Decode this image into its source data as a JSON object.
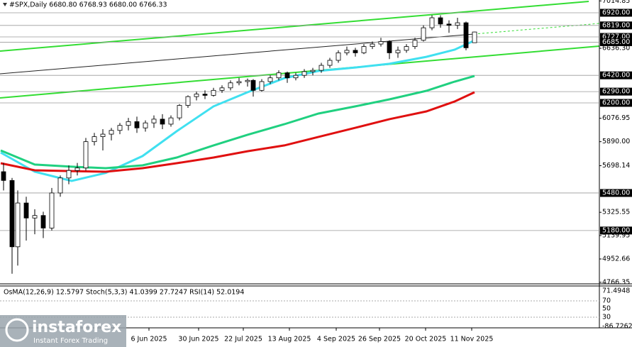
{
  "chart_data": {
    "type": "candlestick",
    "title": "#SPX,Daily  6680.80 6768.93 6680.00 6766.33",
    "x": [
      0,
      3,
      5,
      8,
      11,
      14,
      17,
      20,
      23,
      26,
      29,
      32,
      35,
      38,
      41,
      44,
      47,
      50,
      53,
      56,
      59,
      62,
      65,
      68,
      71,
      74,
      77,
      80,
      83,
      86,
      88,
      91,
      94,
      97,
      100,
      103,
      106,
      109,
      112,
      115,
      118,
      121,
      124,
      127,
      130,
      133,
      136,
      139,
      142,
      145,
      148,
      151,
      154,
      157,
      160,
      163,
      166
    ],
    "open": [
      5650,
      5580,
      5050,
      5400,
      5280,
      5300,
      5200,
      5480,
      5600,
      5660,
      5680,
      5890,
      5930,
      5950,
      5980,
      6020,
      6050,
      6000,
      6040,
      6070,
      6030,
      6080,
      6180,
      6250,
      6270,
      6260,
      6300,
      6320,
      6360,
      6370,
      6380,
      6300,
      6370,
      6400,
      6440,
      6400,
      6420,
      6450,
      6460,
      6500,
      6540,
      6600,
      6620,
      6600,
      6650,
      6670,
      6690,
      6600,
      6620,
      6650,
      6700,
      6800,
      6880,
      6830,
      6820,
      6840,
      6680.8
    ],
    "high": [
      5720,
      5600,
      5500,
      5450,
      5350,
      5330,
      5520,
      5620,
      5700,
      5720,
      5920,
      5960,
      5990,
      6000,
      6040,
      6080,
      6090,
      6060,
      6100,
      6110,
      6100,
      6190,
      6260,
      6290,
      6300,
      6320,
      6340,
      6380,
      6400,
      6395,
      6390,
      6390,
      6420,
      6460,
      6450,
      6440,
      6470,
      6480,
      6520,
      6560,
      6620,
      6650,
      6640,
      6670,
      6690,
      6720,
      6700,
      6650,
      6670,
      6720,
      6820,
      6900,
      6900,
      6860,
      6880,
      6850,
      6768.93
    ],
    "low": [
      5500,
      4835,
      4900,
      5100,
      5150,
      5120,
      5180,
      5450,
      5550,
      5620,
      5660,
      5860,
      5820,
      5900,
      5950,
      5980,
      5960,
      5970,
      6000,
      5990,
      6010,
      6060,
      6160,
      6220,
      6230,
      6250,
      6280,
      6300,
      6340,
      6330,
      6250,
      6290,
      6350,
      6380,
      6360,
      6380,
      6400,
      6420,
      6440,
      6480,
      6520,
      6580,
      6570,
      6590,
      6630,
      6650,
      6550,
      6560,
      6600,
      6630,
      6690,
      6780,
      6800,
      6760,
      6790,
      6620,
      6680
    ],
    "close": [
      5580,
      5050,
      5400,
      5280,
      5300,
      5200,
      5480,
      5600,
      5660,
      5680,
      5890,
      5930,
      5950,
      5980,
      6020,
      6050,
      6000,
      6040,
      6070,
      6030,
      6080,
      6180,
      6250,
      6270,
      6260,
      6300,
      6320,
      6360,
      6370,
      6380,
      6300,
      6370,
      6400,
      6440,
      6400,
      6420,
      6450,
      6460,
      6500,
      6540,
      6600,
      6620,
      6600,
      6650,
      6670,
      6690,
      6600,
      6620,
      6650,
      6700,
      6800,
      6880,
      6830,
      6820,
      6840,
      6640,
      6766.33
    ],
    "series": [
      {
        "color": "#40e0f0",
        "x": [
          -1,
          11,
          24,
          36,
          49,
          61,
          74,
          86,
          99,
          111,
          124,
          136,
          149,
          159,
          166
        ],
        "values": [
          5803,
          5650,
          5576,
          5640,
          5775,
          5973,
          6172,
          6285,
          6398,
          6455,
          6483,
          6512,
          6568,
          6625,
          6699
        ]
      },
      {
        "color": "#20d080",
        "x": [
          -1,
          11,
          24,
          36,
          49,
          61,
          74,
          86,
          99,
          111,
          124,
          136,
          149,
          159,
          166
        ],
        "values": [
          5820,
          5707,
          5690,
          5678,
          5701,
          5763,
          5860,
          5945,
          6030,
          6115,
          6172,
          6228,
          6296,
          6370,
          6415
        ]
      },
      {
        "color": "#e01010",
        "x": [
          -1,
          11,
          24,
          36,
          49,
          61,
          74,
          86,
          99,
          111,
          124,
          136,
          149,
          159,
          166
        ],
        "values": [
          5718,
          5661,
          5655,
          5650,
          5678,
          5718,
          5763,
          5814,
          5860,
          5928,
          6001,
          6070,
          6132,
          6211,
          6285
        ]
      }
    ],
    "levels": [
      {
        "value": 6920,
        "label": "6920.00"
      },
      {
        "value": 6819,
        "label": "6819.00"
      },
      {
        "value": 6727,
        "label": "6727.00"
      },
      {
        "value": 6685,
        "label": "6685.00"
      },
      {
        "value": 6420,
        "label": "6420.00"
      },
      {
        "value": 6290,
        "label": "6290.00"
      },
      {
        "value": 6200,
        "label": "6200.00"
      },
      {
        "value": 5480,
        "label": "5480.00"
      },
      {
        "value": 5180,
        "label": "5180.00"
      }
    ],
    "ylim": [
      4754,
      7022
    ],
    "yticks": [
      7014.85,
      {
        "value": 6636.3,
        "label": "6636.30"
      },
      6076.95,
      {
        "value": 5890,
        "label": "5890.00"
      },
      5698.14,
      5325.55,
      5139.95,
      4952.66,
      4766.35
    ],
    "xlim": [
      -1.25,
      210
    ],
    "xticks": [
      {
        "value": 51.25,
        "label": "6 Jun 2025"
      },
      {
        "value": 68.75,
        "label": "30 Jun 2025"
      },
      {
        "value": 84.5,
        "label": "22 Jul 2025"
      },
      {
        "value": 100.75,
        "label": "13 Aug 2025"
      },
      {
        "value": 117.25,
        "label": "4 Sep 2025"
      },
      {
        "value": 132.5,
        "label": "26 Sep 2025"
      },
      {
        "value": 148.75,
        "label": "20 Oct 2025"
      },
      {
        "value": 165,
        "label": "11 Nov 2025"
      }
    ]
  },
  "indicator_panel": {
    "legend": "OsMA(12,26,9) 12.5797  Stoch(5,3,3) 41.0399 27.7247  RSI(14) 52.0194",
    "axis_labels": [
      "71.4948",
      "70",
      "50",
      "30",
      "-86.7262"
    ]
  },
  "watermark": {
    "brand": "instaforex",
    "tagline": "Instant Forex Trading"
  }
}
